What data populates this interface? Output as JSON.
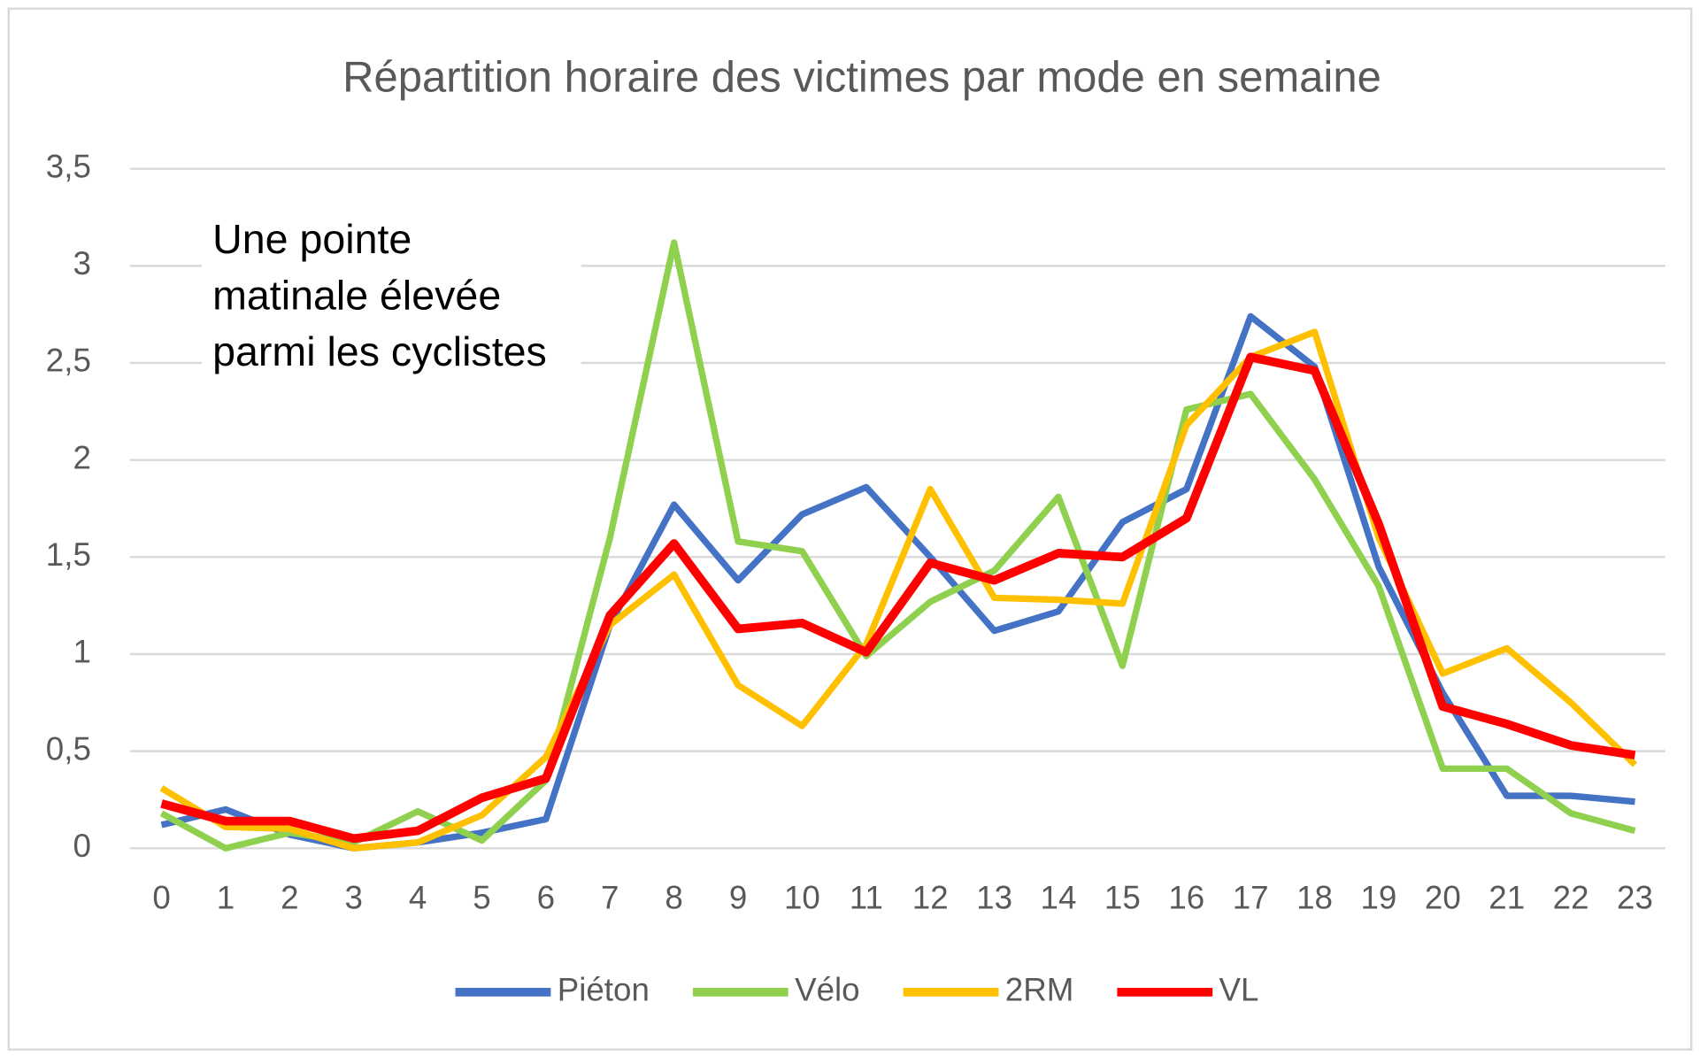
{
  "chart_data": {
    "type": "line",
    "title": "Répartition horaire des victimes par mode en semaine",
    "annotation": "Une pointe matinale élevée parmi les cyclistes",
    "categories": [
      "0",
      "1",
      "2",
      "3",
      "4",
      "5",
      "6",
      "7",
      "8",
      "9",
      "10",
      "11",
      "12",
      "13",
      "14",
      "15",
      "16",
      "17",
      "18",
      "19",
      "20",
      "21",
      "22",
      "23"
    ],
    "series": [
      {
        "name": "Piéton",
        "color": "#4472c4",
        "values": [
          0.12,
          0.2,
          0.07,
          0.0,
          0.03,
          0.08,
          0.15,
          1.15,
          1.77,
          1.38,
          1.72,
          1.86,
          1.5,
          1.12,
          1.22,
          1.68,
          1.85,
          2.74,
          2.48,
          1.45,
          0.8,
          0.27,
          0.27,
          0.24
        ]
      },
      {
        "name": "Vélo",
        "color": "#8fd14f",
        "values": [
          0.18,
          0.0,
          0.08,
          0.03,
          0.19,
          0.04,
          0.35,
          1.6,
          3.12,
          1.58,
          1.53,
          0.99,
          1.27,
          1.43,
          1.81,
          0.94,
          2.26,
          2.34,
          1.9,
          1.35,
          0.41,
          0.41,
          0.18,
          0.09
        ]
      },
      {
        "name": "2RM",
        "color": "#ffc000",
        "values": [
          0.31,
          0.11,
          0.1,
          0.0,
          0.03,
          0.17,
          0.47,
          1.15,
          1.41,
          0.84,
          0.63,
          1.05,
          1.85,
          1.29,
          1.28,
          1.26,
          2.18,
          2.53,
          2.66,
          1.6,
          0.9,
          1.03,
          0.75,
          0.43
        ]
      },
      {
        "name": "VL",
        "color": "#ff0000",
        "values": [
          0.23,
          0.14,
          0.14,
          0.05,
          0.09,
          0.26,
          0.36,
          1.2,
          1.57,
          1.13,
          1.16,
          1.01,
          1.47,
          1.38,
          1.52,
          1.5,
          1.7,
          2.53,
          2.46,
          1.67,
          0.73,
          0.64,
          0.53,
          0.48
        ]
      }
    ],
    "ylim": [
      0,
      3.5
    ],
    "yticks": [
      0,
      {
        "value": 0.5,
        "label": "0,5"
      },
      1,
      {
        "value": 1.5,
        "label": "1,5"
      },
      2,
      {
        "value": 2.5,
        "label": "2,5"
      },
      3,
      {
        "value": 3.5,
        "label": "3,5"
      }
    ],
    "grid": true,
    "legend": "bottom"
  }
}
